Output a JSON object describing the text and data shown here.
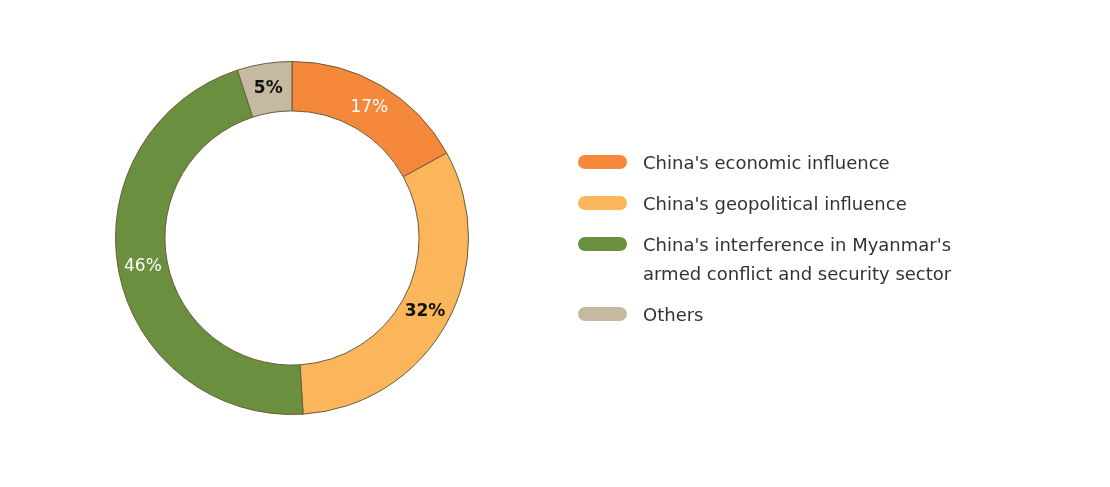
{
  "chart_data": {
    "type": "donut",
    "categories": [
      "China's economic influence",
      "China's geopolitical influence",
      "China's interference in Myanmar's armed conflict and security sector",
      "Others"
    ],
    "values": [
      17,
      32,
      46,
      5
    ],
    "colors": [
      "#f5883a",
      "#fbb55a",
      "#6a8f3e",
      "#c5b9a0"
    ],
    "value_labels": [
      "17%",
      "32%",
      "46%",
      "5%"
    ],
    "legend": "right"
  }
}
